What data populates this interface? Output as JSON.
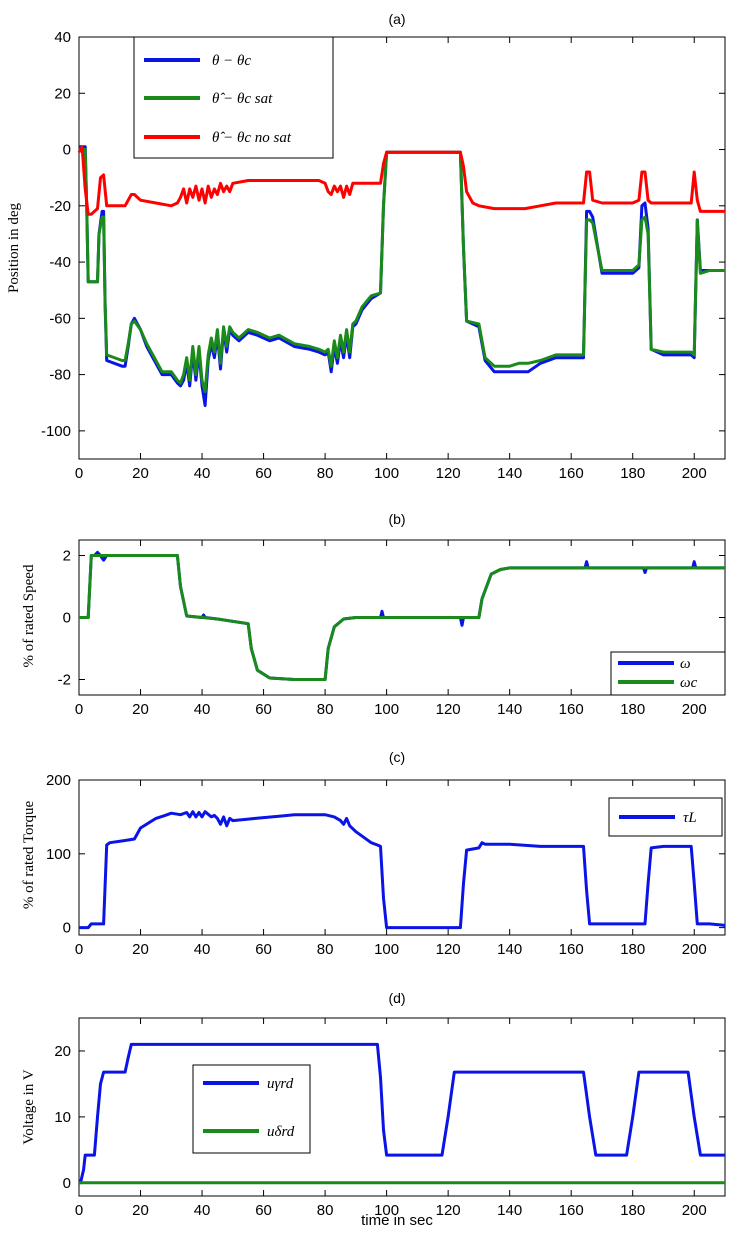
{
  "figure": {
    "xlabel": "time in sec"
  },
  "colors": {
    "blue": "#0a14e6",
    "green": "#1a8a1a",
    "red": "#ff0000"
  },
  "chart_data": [
    {
      "type": "line",
      "title": "(a)",
      "ylabel": "Position in deg",
      "xlim": [
        0,
        210
      ],
      "ylim": [
        -110,
        40
      ],
      "xticks": [
        0,
        20,
        40,
        60,
        80,
        100,
        120,
        140,
        160,
        180,
        200
      ],
      "yticks": [
        -100,
        -80,
        -60,
        -40,
        -20,
        0,
        20,
        40
      ],
      "legend": {
        "placement": "top-left",
        "entries": [
          "θ − θc",
          "θ̂ − θc sat",
          "θ̂ − θc no sat"
        ]
      },
      "series": [
        {
          "name": "θ − θc",
          "color": "blue",
          "x": [
            0,
            2,
            2.5,
            3,
            6,
            6.5,
            7.5,
            8,
            8.5,
            9,
            14,
            15,
            16,
            17,
            18,
            20,
            22,
            25,
            27,
            30,
            32,
            33,
            34,
            35,
            36,
            37,
            38,
            39,
            40,
            41,
            42,
            43,
            44,
            45,
            46,
            47,
            48,
            49,
            50,
            52,
            55,
            58,
            60,
            62,
            65,
            70,
            75,
            78,
            80,
            81,
            82,
            83,
            84,
            85,
            86,
            87,
            88,
            89,
            90,
            92,
            95,
            98,
            99,
            100,
            102,
            110,
            120,
            124,
            125,
            126,
            130,
            131,
            132,
            135,
            140,
            143,
            146,
            150,
            155,
            160,
            164,
            165,
            166,
            167,
            170,
            175,
            180,
            182,
            183,
            184,
            185,
            186,
            190,
            195,
            199,
            200,
            201,
            202,
            205,
            210
          ],
          "y": [
            1,
            1,
            -20,
            -47,
            -47,
            -30,
            -22,
            -22,
            -55,
            -75,
            -77,
            -77,
            -70,
            -62,
            -60,
            -64,
            -70,
            -76,
            -80,
            -80,
            -83,
            -84,
            -82,
            -76,
            -84,
            -72,
            -82,
            -72,
            -84,
            -91,
            -75,
            -69,
            -74,
            -66,
            -78,
            -64,
            -72,
            -64,
            -66,
            -68,
            -65,
            -66,
            -67,
            -68,
            -67,
            -70,
            -71,
            -72,
            -73,
            -72,
            -79,
            -70,
            -76,
            -68,
            -74,
            -66,
            -74,
            -63,
            -62,
            -57,
            -53,
            -51,
            -20,
            -1,
            -1,
            -1,
            -1,
            -1,
            -35,
            -61,
            -63,
            -69,
            -75,
            -79,
            -79,
            -79,
            -79,
            -76,
            -74,
            -74,
            -74,
            -22,
            -22,
            -24,
            -44,
            -44,
            -44,
            -42,
            -20,
            -19,
            -28,
            -71,
            -73,
            -73,
            -73,
            -74,
            -25,
            -43,
            -43,
            -43
          ]
        },
        {
          "name": "θ̂ − θc sat",
          "color": "green",
          "x": [
            0,
            2,
            2.5,
            3,
            6,
            6.5,
            7.5,
            8,
            8.5,
            9,
            14,
            15,
            16,
            17,
            18,
            20,
            22,
            25,
            27,
            30,
            32,
            33,
            34,
            35,
            36,
            37,
            38,
            39,
            40,
            41,
            42,
            43,
            44,
            45,
            46,
            47,
            48,
            49,
            50,
            52,
            55,
            58,
            60,
            62,
            65,
            70,
            75,
            78,
            80,
            81,
            82,
            83,
            84,
            85,
            86,
            87,
            88,
            89,
            90,
            92,
            95,
            98,
            99,
            100,
            102,
            110,
            120,
            124,
            125,
            126,
            130,
            131,
            132,
            135,
            140,
            143,
            146,
            150,
            155,
            160,
            164,
            165,
            166,
            167,
            170,
            175,
            180,
            182,
            183,
            184,
            185,
            186,
            190,
            195,
            199,
            200,
            201,
            202,
            205,
            210
          ],
          "y": [
            0,
            0,
            -20,
            -47,
            -47,
            -30,
            -24,
            -24,
            -55,
            -73,
            -75,
            -75,
            -69,
            -62,
            -61,
            -64,
            -69,
            -75,
            -79,
            -79,
            -82,
            -83,
            -80,
            -74,
            -82,
            -70,
            -80,
            -70,
            -82,
            -86,
            -73,
            -67,
            -72,
            -64,
            -76,
            -63,
            -70,
            -63,
            -65,
            -67,
            -64,
            -65,
            -66,
            -67,
            -66,
            -69,
            -70,
            -71,
            -72,
            -71,
            -77,
            -68,
            -74,
            -66,
            -72,
            -64,
            -72,
            -62,
            -61,
            -56,
            -52,
            -51,
            -20,
            -1,
            -1,
            -1,
            -1,
            -1,
            -35,
            -61,
            -62,
            -68,
            -74,
            -77,
            -77,
            -76,
            -76,
            -75,
            -73,
            -73,
            -73,
            -25,
            -25,
            -26,
            -43,
            -43,
            -43,
            -41,
            -25,
            -24,
            -30,
            -71,
            -72,
            -72,
            -72,
            -73,
            -25,
            -44,
            -43,
            -43
          ]
        },
        {
          "name": "θ̂ − θc no sat",
          "color": "red",
          "x": [
            0,
            1,
            2,
            3,
            4,
            5,
            6,
            7,
            8,
            9,
            10,
            12,
            15,
            17,
            18,
            20,
            25,
            30,
            32,
            33,
            34,
            35,
            36,
            37,
            38,
            39,
            40,
            41,
            42,
            43,
            44,
            45,
            46,
            47,
            48,
            49,
            50,
            55,
            60,
            65,
            70,
            75,
            78,
            80,
            81,
            82,
            83,
            84,
            85,
            86,
            87,
            88,
            89,
            90,
            95,
            98,
            99,
            100,
            110,
            120,
            124,
            125,
            126,
            128,
            130,
            135,
            140,
            145,
            150,
            155,
            160,
            164,
            165,
            166,
            167,
            170,
            175,
            180,
            182,
            183,
            184,
            185,
            186,
            190,
            195,
            199,
            200,
            201,
            202,
            205,
            210
          ],
          "y": [
            -1,
            1,
            -14,
            -23,
            -23,
            -22,
            -21,
            -10,
            -9,
            -20,
            -20,
            -20,
            -20,
            -16,
            -16,
            -18,
            -19,
            -20,
            -19,
            -17,
            -14,
            -19,
            -14,
            -17,
            -13,
            -18,
            -14,
            -19,
            -13,
            -17,
            -14,
            -16,
            -12,
            -15,
            -13,
            -15,
            -12,
            -11,
            -11,
            -11,
            -11,
            -11,
            -11,
            -12,
            -15,
            -16,
            -13,
            -15,
            -13,
            -17,
            -13,
            -16,
            -12,
            -12,
            -12,
            -12,
            -5,
            -1,
            -1,
            -1,
            -1,
            -6,
            -15,
            -19,
            -20,
            -21,
            -21,
            -21,
            -20,
            -19,
            -19,
            -19,
            -8,
            -8,
            -18,
            -19,
            -19,
            -19,
            -18,
            -8,
            -8,
            -18,
            -19,
            -19,
            -19,
            -19,
            -8,
            -18,
            -22,
            -22,
            -22
          ]
        }
      ]
    },
    {
      "type": "line",
      "title": "(b)",
      "ylabel": "% of rated Speed",
      "xlim": [
        0,
        210
      ],
      "ylim": [
        -2.5,
        2.5
      ],
      "xticks": [
        0,
        20,
        40,
        60,
        80,
        100,
        120,
        140,
        160,
        180,
        200
      ],
      "yticks": [
        -2,
        0,
        2
      ],
      "legend": {
        "placement": "bottom-right",
        "entries": [
          "ω",
          "ωc"
        ]
      },
      "series": [
        {
          "name": "ω",
          "color": "blue",
          "x": [
            0,
            3,
            4,
            5,
            6,
            7,
            8,
            9,
            10,
            20,
            32,
            33,
            35,
            40,
            40.5,
            41,
            45,
            55,
            56,
            58,
            62,
            70,
            80,
            81,
            83,
            86,
            90,
            98,
            98.5,
            99,
            120,
            124,
            124.5,
            125,
            130,
            131,
            134,
            137,
            140,
            150,
            164.5,
            165,
            165.5,
            170,
            183.5,
            184,
            184.5,
            190,
            199.5,
            200,
            200.5,
            210
          ],
          "y": [
            0,
            0,
            2,
            2,
            2.1,
            2,
            1.85,
            2,
            2,
            2,
            2,
            1,
            0.05,
            0,
            0.08,
            0,
            -0.05,
            -0.2,
            -1,
            -1.7,
            -1.95,
            -2,
            -2,
            -1,
            -0.3,
            -0.05,
            0,
            0,
            0.2,
            0,
            0,
            0,
            -0.25,
            0,
            0,
            0.6,
            1.4,
            1.55,
            1.6,
            1.6,
            1.6,
            1.8,
            1.6,
            1.6,
            1.6,
            1.45,
            1.6,
            1.6,
            1.6,
            1.8,
            1.6,
            1.6
          ]
        },
        {
          "name": "ωc",
          "color": "green",
          "x": [
            0,
            3,
            4,
            5,
            10,
            20,
            32,
            33,
            35,
            45,
            55,
            56,
            58,
            62,
            70,
            80,
            81,
            83,
            86,
            90,
            120,
            130,
            131,
            134,
            137,
            140,
            150,
            210
          ],
          "y": [
            0,
            0,
            2,
            2,
            2,
            2,
            2,
            1,
            0.05,
            -0.05,
            -0.2,
            -1,
            -1.7,
            -1.95,
            -2,
            -2,
            -1,
            -0.3,
            -0.05,
            0,
            0,
            0,
            0.6,
            1.4,
            1.55,
            1.6,
            1.6,
            1.6
          ]
        }
      ]
    },
    {
      "type": "line",
      "title": "(c)",
      "ylabel": "% of rated Torque",
      "xlim": [
        0,
        210
      ],
      "ylim": [
        -10,
        200
      ],
      "xticks": [
        0,
        20,
        40,
        60,
        80,
        100,
        120,
        140,
        160,
        180,
        200
      ],
      "yticks": [
        0,
        100,
        200
      ],
      "legend": {
        "placement": "top-right",
        "entries": [
          "τL"
        ]
      },
      "series": [
        {
          "name": "τL",
          "color": "blue",
          "x": [
            0,
            3,
            4,
            6,
            8,
            9,
            10,
            15,
            18,
            20,
            25,
            28,
            30,
            33,
            35,
            36,
            37,
            38,
            39,
            40,
            41,
            43,
            44,
            45,
            46,
            47,
            48,
            49,
            50,
            55,
            60,
            65,
            70,
            80,
            83,
            85,
            86,
            87,
            88,
            90,
            95,
            97,
            98,
            99,
            100,
            110,
            120,
            124,
            125,
            126,
            130,
            131,
            132,
            135,
            140,
            150,
            160,
            164,
            165,
            166,
            170,
            180,
            184,
            185,
            186,
            190,
            199,
            200,
            201,
            205,
            210
          ],
          "y": [
            0,
            0,
            5,
            5,
            5,
            112,
            115,
            118,
            120,
            135,
            148,
            152,
            155,
            153,
            156,
            150,
            157,
            150,
            156,
            150,
            157,
            150,
            152,
            148,
            140,
            150,
            138,
            148,
            145,
            147,
            149,
            151,
            153,
            153,
            150,
            145,
            140,
            148,
            138,
            130,
            115,
            112,
            110,
            40,
            0,
            0,
            0,
            0,
            60,
            105,
            108,
            115,
            113,
            113,
            113,
            110,
            110,
            110,
            50,
            5,
            5,
            5,
            5,
            60,
            108,
            110,
            110,
            60,
            5,
            5,
            3
          ]
        }
      ]
    },
    {
      "type": "line",
      "title": "(d)",
      "ylabel": "Voltage in V",
      "xlim": [
        0,
        210
      ],
      "ylim": [
        -2,
        25
      ],
      "xticks": [
        0,
        20,
        40,
        60,
        80,
        100,
        120,
        140,
        160,
        180,
        200
      ],
      "yticks": [
        0,
        10,
        20
      ],
      "legend": {
        "placement": "center-left",
        "entries": [
          "uγrd",
          "uδrd"
        ]
      },
      "series": [
        {
          "name": "uγrd",
          "color": "blue",
          "x": [
            0,
            0.5,
            1.5,
            2,
            5,
            6,
            7,
            8,
            15,
            16,
            17,
            18,
            97,
            98,
            99,
            100,
            118,
            120,
            122,
            164,
            166,
            168,
            178,
            180,
            182,
            198,
            200,
            202,
            210
          ],
          "y": [
            0,
            0,
            2,
            4.2,
            4.2,
            10,
            15,
            16.8,
            16.8,
            19,
            21,
            21,
            21,
            16,
            8,
            4.2,
            4.2,
            10,
            16.8,
            16.8,
            10,
            4.2,
            4.2,
            10,
            16.8,
            16.8,
            10,
            4.2,
            4.2
          ]
        },
        {
          "name": "uδrd",
          "color": "green",
          "x": [
            0,
            210
          ],
          "y": [
            0,
            0
          ]
        }
      ]
    }
  ]
}
